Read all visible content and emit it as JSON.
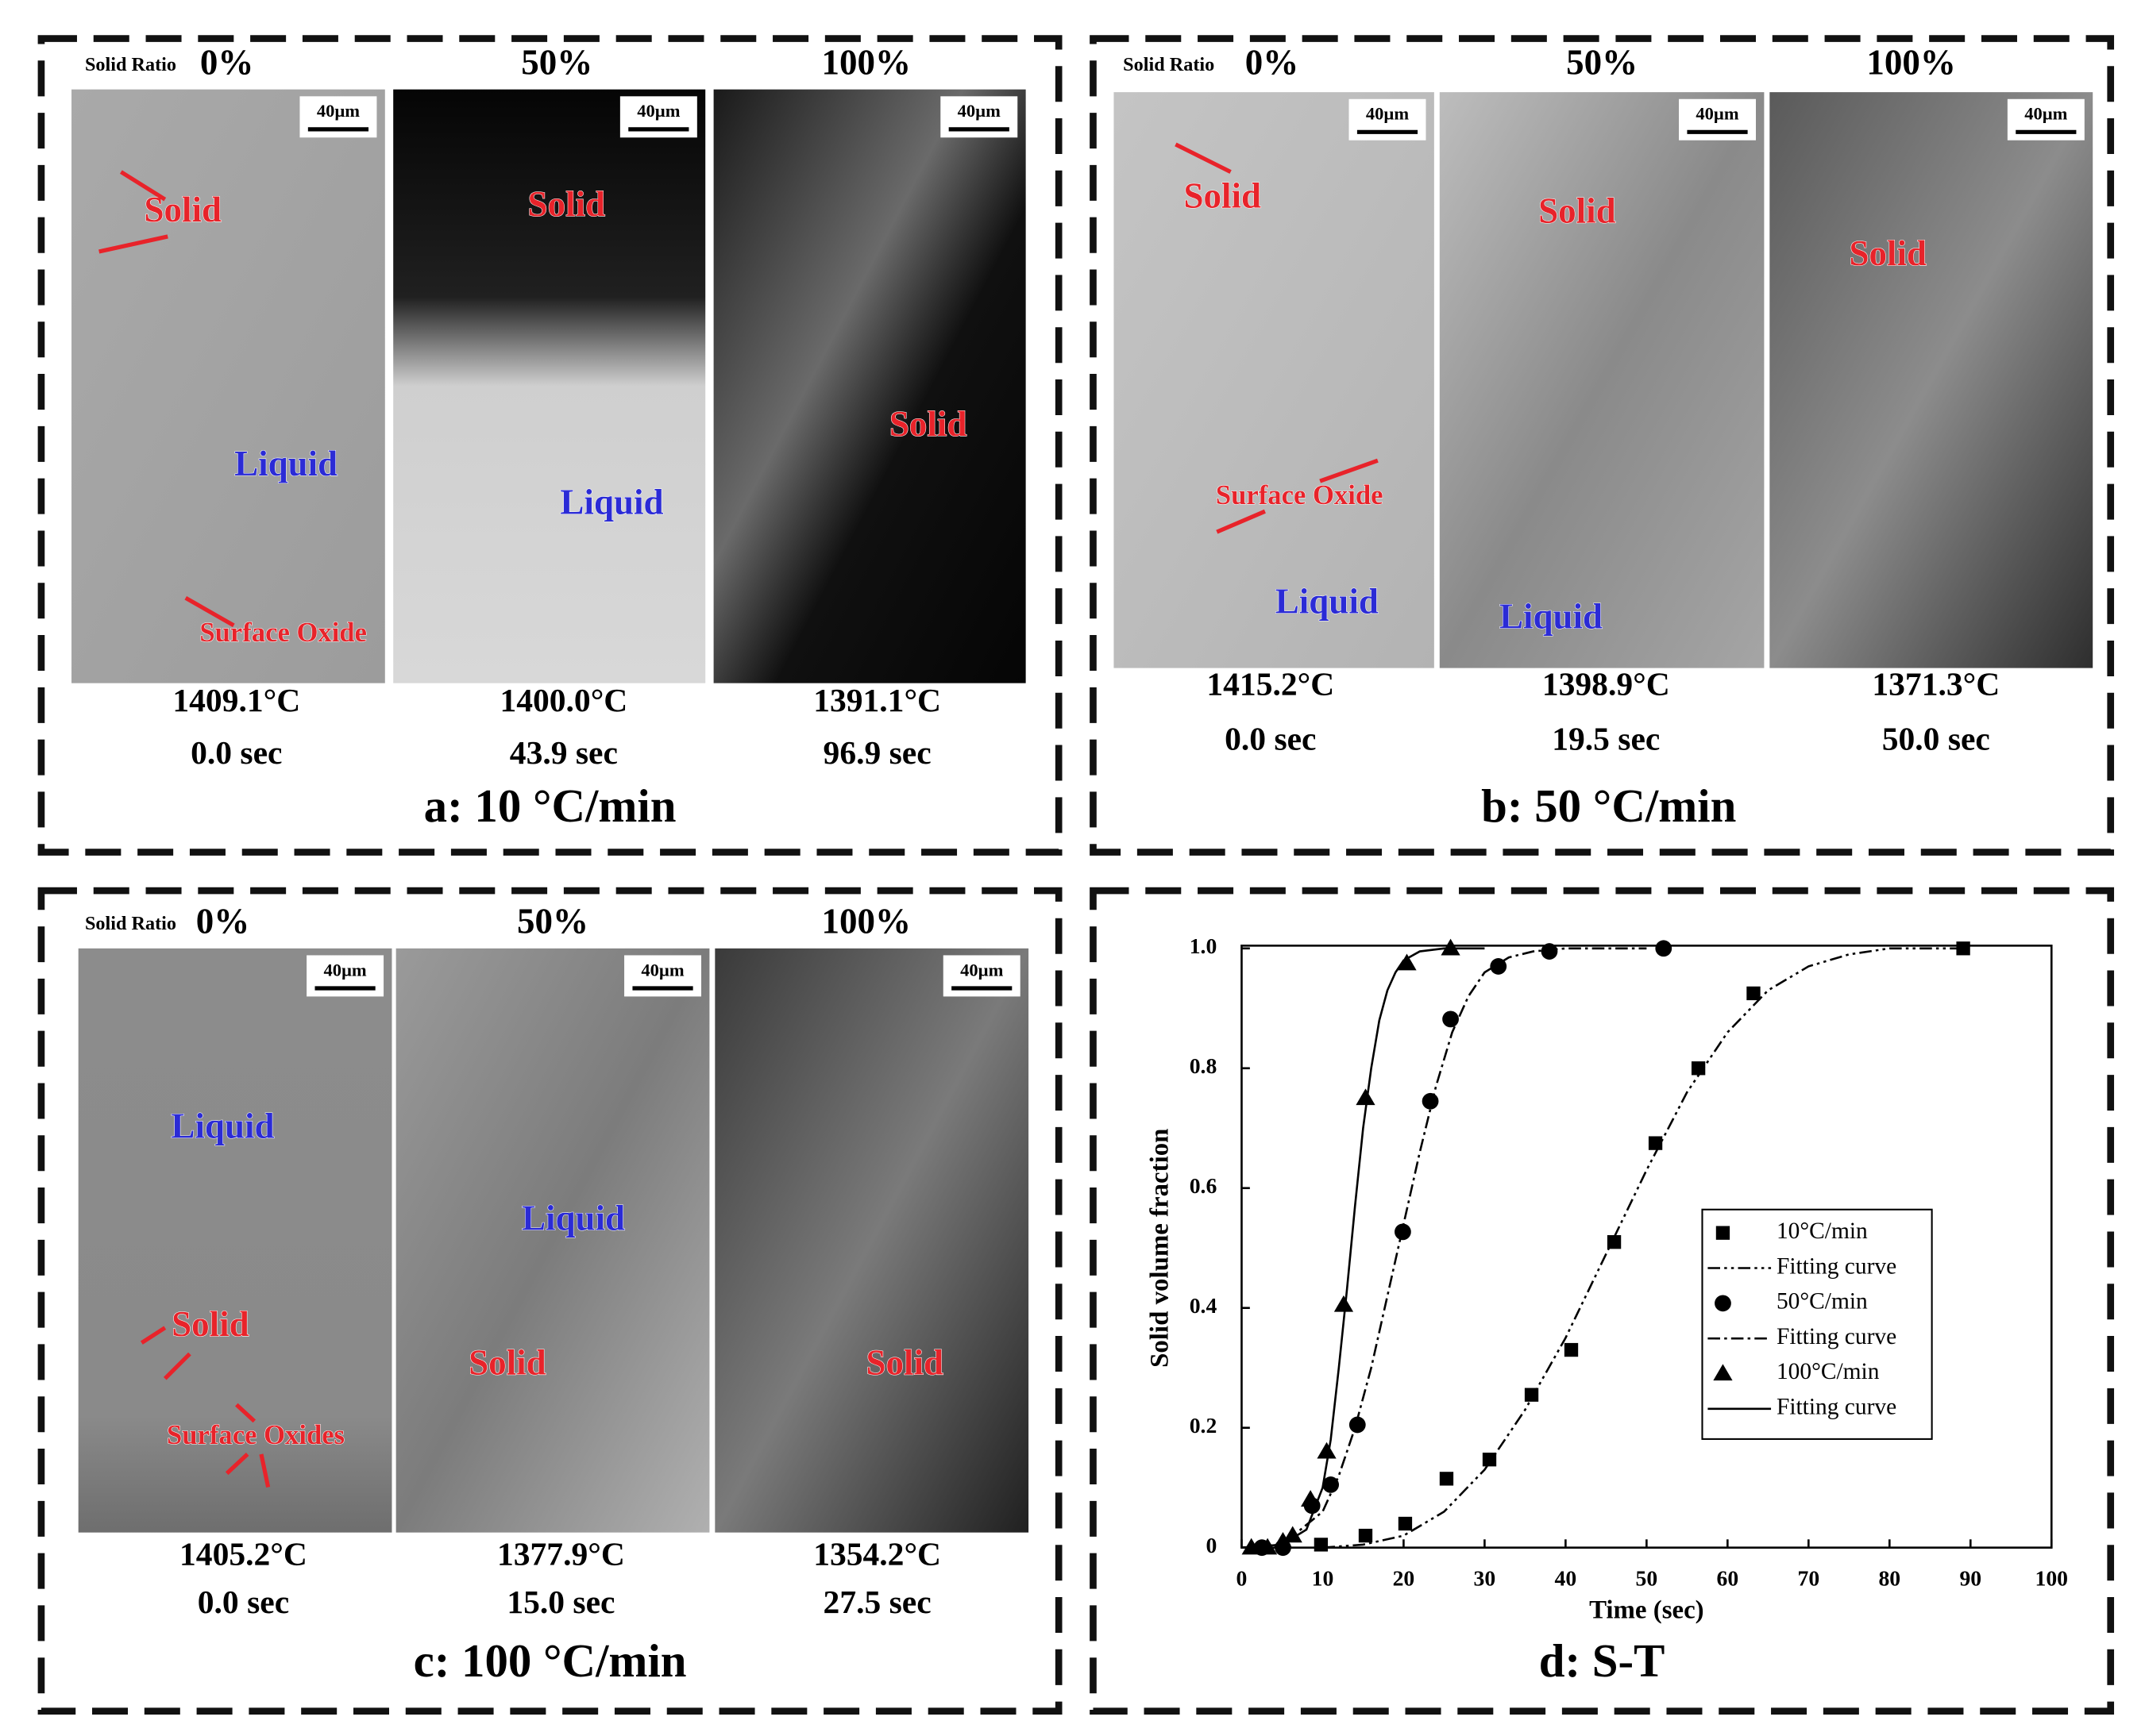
{
  "panels": [
    {
      "caption": "a: 10 °C/min",
      "solid_ratio_label": "Solid Ratio",
      "images": [
        {
          "ratio": "0%",
          "temperature": "1409.1°C",
          "time": "0.0 sec",
          "scale_bar": "40µm",
          "annotations": [
            {
              "text": "Solid",
              "color": "#e8232a"
            },
            {
              "text": "Liquid",
              "color": "#2b2bd6"
            },
            {
              "text": "Surface Oxide",
              "color": "#e8232a"
            }
          ]
        },
        {
          "ratio": "50%",
          "temperature": "1400.0°C",
          "time": "43.9 sec",
          "scale_bar": "40µm",
          "annotations": [
            {
              "text": "Solid",
              "color": "#e8232a"
            },
            {
              "text": "Liquid",
              "color": "#2b2bd6"
            }
          ]
        },
        {
          "ratio": "100%",
          "temperature": "1391.1°C",
          "time": "96.9 sec",
          "scale_bar": "40µm",
          "annotations": [
            {
              "text": "Solid",
              "color": "#e8232a"
            }
          ]
        }
      ]
    },
    {
      "caption": "b: 50 °C/min",
      "solid_ratio_label": "Solid Ratio",
      "images": [
        {
          "ratio": "0%",
          "temperature": "1415.2°C",
          "time": "0.0 sec",
          "scale_bar": "40µm",
          "annotations": [
            {
              "text": "Solid",
              "color": "#e8232a"
            },
            {
              "text": "Surface Oxide",
              "color": "#e8232a"
            },
            {
              "text": "Liquid",
              "color": "#2b2bd6"
            }
          ]
        },
        {
          "ratio": "50%",
          "temperature": "1398.9°C",
          "time": "19.5 sec",
          "scale_bar": "40µm",
          "annotations": [
            {
              "text": "Solid",
              "color": "#e8232a"
            },
            {
              "text": "Liquid",
              "color": "#2b2bd6"
            }
          ]
        },
        {
          "ratio": "100%",
          "temperature": "1371.3°C",
          "time": "50.0 sec",
          "scale_bar": "40µm",
          "annotations": [
            {
              "text": "Solid",
              "color": "#e8232a"
            }
          ]
        }
      ]
    },
    {
      "caption": "c: 100 °C/min",
      "solid_ratio_label": "Solid Ratio",
      "images": [
        {
          "ratio": "0%",
          "temperature": "1405.2°C",
          "time": "0.0 sec",
          "scale_bar": "40µm",
          "annotations": [
            {
              "text": "Liquid",
              "color": "#2b2bd6"
            },
            {
              "text": "Solid",
              "color": "#e8232a"
            },
            {
              "text": "Surface Oxides",
              "color": "#e8232a"
            }
          ]
        },
        {
          "ratio": "50%",
          "temperature": "1377.9°C",
          "time": "15.0 sec",
          "scale_bar": "40µm",
          "annotations": [
            {
              "text": "Liquid",
              "color": "#2b2bd6"
            },
            {
              "text": "Solid",
              "color": "#e8232a"
            }
          ]
        },
        {
          "ratio": "100%",
          "temperature": "1354.2°C",
          "time": "27.5 sec",
          "scale_bar": "40µm",
          "annotations": [
            {
              "text": "Solid",
              "color": "#e8232a"
            }
          ]
        }
      ]
    }
  ],
  "chart_data": {
    "type": "scatter",
    "title": "d: S-T",
    "xlabel": "Time (sec)",
    "ylabel": "Solid volume fraction",
    "xlim": [
      0,
      100
    ],
    "ylim": [
      0,
      1.05
    ],
    "xticks": [
      0,
      10,
      20,
      30,
      40,
      50,
      60,
      70,
      80,
      90,
      100
    ],
    "yticks": [
      0,
      0.2,
      0.4,
      0.6,
      0.8,
      {
        "value": 1,
        "label": "1.0"
      }
    ],
    "legend_position": "center right",
    "series": [
      {
        "name": "10°C/min",
        "color": "#000000",
        "marker": "square",
        "x": [
          9.8,
          15.3,
          20.2,
          25.3,
          30.6,
          35.8,
          40.7,
          46,
          51.1,
          56.4,
          63.2,
          89.1
        ],
        "values": [
          0.005,
          0.02,
          0.04,
          0.115,
          0.147,
          0.255,
          0.33,
          0.51,
          0.675,
          0.8,
          0.925,
          1.0
        ]
      },
      {
        "name": "Fitting curve",
        "color": "#000000",
        "line": "dash-dot-dot",
        "x": [
          10,
          15,
          20,
          25,
          30,
          35,
          40,
          45,
          50,
          55,
          60,
          65,
          70,
          75,
          80,
          90
        ],
        "values": [
          0,
          0.005,
          0.02,
          0.06,
          0.13,
          0.23,
          0.35,
          0.49,
          0.63,
          0.76,
          0.86,
          0.93,
          0.97,
          0.99,
          1,
          1
        ]
      },
      {
        "name": "50°C/min",
        "color": "#000000",
        "marker": "circle",
        "x": [
          2.5,
          5.1,
          8.7,
          11,
          14.3,
          19.9,
          23.3,
          25.8,
          31.7,
          38,
          52.1
        ],
        "values": [
          0,
          0,
          0.07,
          0.105,
          0.205,
          0.527,
          0.745,
          0.882,
          0.97,
          0.995,
          1.0
        ]
      },
      {
        "name": "Fitting curve",
        "color": "#000000",
        "line": "dash-dot",
        "x": [
          0,
          5,
          10,
          12,
          14,
          16,
          18,
          20,
          22,
          24,
          26,
          28,
          30,
          33,
          36,
          40,
          50
        ],
        "values": [
          0,
          0.005,
          0.06,
          0.12,
          0.2,
          0.3,
          0.42,
          0.54,
          0.66,
          0.77,
          0.86,
          0.92,
          0.96,
          0.985,
          0.995,
          1,
          1
        ]
      },
      {
        "name": "100°C/min",
        "color": "#000000",
        "marker": "triangle",
        "x": [
          1.2,
          3.2,
          5.1,
          6.3,
          8.5,
          10.5,
          12.6,
          15.3,
          20.4,
          25.8
        ],
        "values": [
          0,
          0,
          0.01,
          0.02,
          0.08,
          0.16,
          0.405,
          0.75,
          0.975,
          1.0
        ]
      },
      {
        "name": "Fitting curve",
        "color": "#000000",
        "line": "solid",
        "x": [
          0,
          5,
          8,
          10,
          11,
          12,
          13,
          14,
          15,
          16,
          17,
          18,
          19,
          20,
          22,
          25,
          30
        ],
        "values": [
          0,
          0.005,
          0.03,
          0.1,
          0.18,
          0.3,
          0.43,
          0.57,
          0.7,
          0.8,
          0.88,
          0.93,
          0.96,
          0.98,
          0.995,
          1,
          1
        ]
      }
    ]
  }
}
